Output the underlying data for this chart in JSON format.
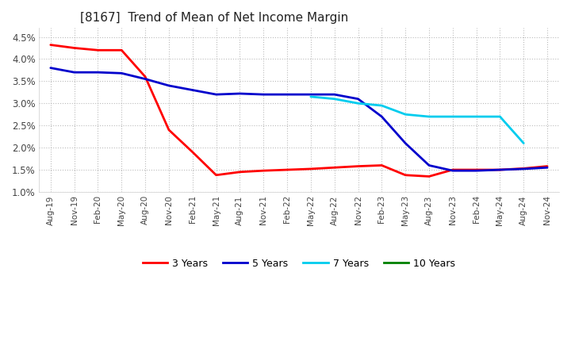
{
  "title": "[8167]  Trend of Mean of Net Income Margin",
  "title_fontsize": 11,
  "ylim": [
    0.01,
    0.047
  ],
  "yticks": [
    0.01,
    0.015,
    0.02,
    0.025,
    0.03,
    0.035,
    0.04,
    0.045
  ],
  "ytick_labels": [
    "1.0%",
    "1.5%",
    "2.0%",
    "2.5%",
    "3.0%",
    "3.5%",
    "4.0%",
    "4.5%"
  ],
  "x_labels": [
    "Aug-19",
    "Nov-19",
    "Feb-20",
    "May-20",
    "Aug-20",
    "Nov-20",
    "Feb-21",
    "May-21",
    "Aug-21",
    "Nov-21",
    "Feb-22",
    "May-22",
    "Aug-22",
    "Nov-22",
    "Feb-23",
    "May-23",
    "Aug-23",
    "Nov-23",
    "Feb-24",
    "May-24",
    "Aug-24",
    "Nov-24"
  ],
  "series": {
    "3 Years": {
      "color": "#ff0000",
      "values": [
        0.0432,
        0.0425,
        0.042,
        0.042,
        0.036,
        0.024,
        0.019,
        0.0138,
        0.0145,
        0.0148,
        0.015,
        0.0152,
        0.0155,
        0.0158,
        0.016,
        0.0138,
        0.0135,
        0.015,
        0.015,
        0.015,
        0.0153,
        0.0158
      ]
    },
    "5 Years": {
      "color": "#0000cc",
      "values": [
        0.038,
        0.037,
        0.037,
        0.0368,
        0.0355,
        0.034,
        0.033,
        0.032,
        0.0322,
        0.032,
        0.032,
        0.032,
        0.032,
        0.031,
        0.027,
        0.021,
        0.016,
        0.0148,
        0.0148,
        0.015,
        0.0152,
        0.0155
      ]
    },
    "7 Years": {
      "color": "#00ccee",
      "values": [
        null,
        null,
        null,
        null,
        null,
        null,
        null,
        null,
        null,
        null,
        null,
        0.0315,
        0.031,
        0.03,
        0.0295,
        0.0275,
        0.027,
        0.027,
        0.027,
        0.027,
        0.021,
        null
      ]
    },
    "10 Years": {
      "color": "#008000",
      "values": [
        null,
        null,
        null,
        null,
        null,
        null,
        null,
        null,
        null,
        null,
        null,
        null,
        null,
        null,
        null,
        null,
        null,
        null,
        null,
        null,
        null,
        null
      ]
    }
  },
  "legend_labels": [
    "3 Years",
    "5 Years",
    "7 Years",
    "10 Years"
  ],
  "legend_colors": [
    "#ff0000",
    "#0000cc",
    "#00ccee",
    "#008000"
  ],
  "background_color": "#ffffff",
  "grid_color": "#aaaaaa"
}
